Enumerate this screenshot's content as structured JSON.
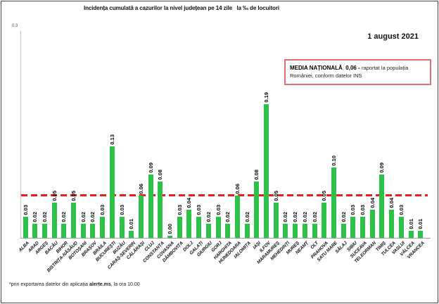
{
  "header": {
    "title": "Incidența cumulată a cazurilor la nivel județean pe 14 zile   la ‰ de locuitori",
    "date": "1 august 2021"
  },
  "media_box": {
    "label": "MEDIA NAȚIONALĂ",
    "value": "0,06 -",
    "description": "raportat la populația României, conform datelor INS"
  },
  "footnote": {
    "prefix": "*prin exportarea datelor din aplicația ",
    "bold": "alerte.ms",
    "suffix": ", la ora 10.00"
  },
  "y_axis": {
    "top_label": "0.3"
  },
  "colors": {
    "bar": "#2cc248",
    "dashed_line": "#ee1c1c",
    "media_box_border": "#e07070"
  },
  "chart_data": {
    "type": "bar",
    "title": "Incidența cumulată a cazurilor la nivel județean pe 14 zile la ‰ de locuitori",
    "xlabel": "",
    "ylabel": "",
    "unit": "‰",
    "ylim": [
      0,
      0.3
    ],
    "grid": false,
    "national_average": 0.06,
    "categories": [
      "ALBA",
      "ARAD",
      "ARGEȘ",
      "BACĂU",
      "BIHOR",
      "BISTRIȚA-NĂSĂUD",
      "BOTOȘANI",
      "BRAȘOV",
      "BRĂILA",
      "BUCUREȘTI",
      "BUZĂU",
      "CARAȘ-SEVERIN",
      "CĂLĂRAȘI",
      "CLUJ",
      "CONSTANȚA",
      "COVASNA",
      "DÂMBOVIȚA",
      "DOLJ",
      "GALAȚI",
      "GIURGIU",
      "GORJ",
      "HARGHITA",
      "HUNEDOARA",
      "IALOMIȚA",
      "IAȘI",
      "ILFOV",
      "MARAMUREȘ",
      "MEHEDINȚI",
      "MUREȘ",
      "NEAMȚ",
      "OLT",
      "PRAHOVA",
      "SATU MARE",
      "SĂLAJ",
      "SIBIU",
      "SUCEAVA",
      "TELEORMAN",
      "TIMIȘ",
      "TULCEA",
      "VASLUI",
      "VÂLCEA",
      "VRANCEA"
    ],
    "values": [
      0.03,
      0.02,
      0.02,
      0.05,
      0.02,
      0.05,
      0.02,
      0.02,
      0.03,
      0.13,
      0.03,
      0.01,
      0.06,
      0.09,
      0.08,
      0.0,
      0.03,
      0.04,
      0.03,
      0.02,
      0.03,
      0.02,
      0.06,
      0.02,
      0.08,
      0.19,
      0.05,
      0.02,
      0.02,
      0.02,
      0.02,
      0.05,
      0.1,
      0.02,
      0.03,
      0.03,
      0.04,
      0.09,
      0.04,
      0.03,
      0.01,
      0.01
    ]
  }
}
